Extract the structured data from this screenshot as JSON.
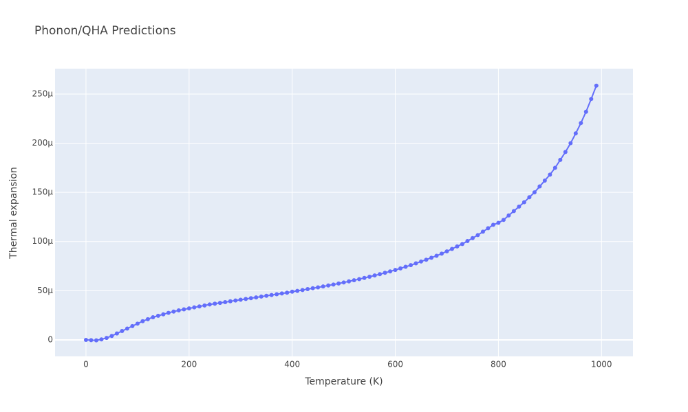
{
  "chart_data": {
    "type": "line",
    "title": "Phonon/QHA Predictions",
    "x_label": "Temperature (K)",
    "y_label": "Thermal expansion",
    "xlim": [
      -60,
      1061
    ],
    "xticks": [
      0,
      200,
      400,
      600,
      800,
      1000
    ],
    "ylim": [
      -1.68e-05,
      0.0002758
    ],
    "yticks": [
      0,
      {
        "value": 5e-05,
        "label": "50µ"
      },
      {
        "value": 0.0001,
        "label": "100µ"
      },
      {
        "value": 0.00015,
        "label": "150µ"
      },
      {
        "value": 0.0002,
        "label": "200µ"
      },
      {
        "value": 0.00025,
        "label": "250µ"
      }
    ],
    "grid": true,
    "x": [
      0,
      10,
      20,
      30,
      40,
      50,
      60,
      70,
      80,
      90,
      100,
      110,
      120,
      130,
      140,
      150,
      160,
      170,
      180,
      190,
      200,
      210,
      220,
      230,
      240,
      250,
      260,
      270,
      280,
      290,
      300,
      310,
      320,
      330,
      340,
      350,
      360,
      370,
      380,
      390,
      400,
      410,
      420,
      430,
      440,
      450,
      460,
      470,
      480,
      490,
      500,
      510,
      520,
      530,
      540,
      550,
      560,
      570,
      580,
      590,
      600,
      610,
      620,
      630,
      640,
      650,
      660,
      670,
      680,
      690,
      700,
      710,
      720,
      730,
      740,
      750,
      760,
      770,
      780,
      790,
      800,
      810,
      820,
      830,
      840,
      850,
      860,
      870,
      880,
      890,
      900,
      910,
      920,
      930,
      940,
      950,
      960,
      970,
      980,
      990
    ],
    "series": [
      {
        "color": "#636efa",
        "values": [
          0.0,
          -3e-07,
          -5e-07,
          5e-07,
          2e-06,
          4e-06,
          6.5e-06,
          9e-06,
          1.15e-05,
          1.4e-05,
          1.65e-05,
          1.9e-05,
          2.1e-05,
          2.3e-05,
          2.45e-05,
          2.6e-05,
          2.75e-05,
          2.88e-05,
          3e-05,
          3.1e-05,
          3.2e-05,
          3.3e-05,
          3.4e-05,
          3.5e-05,
          3.6e-05,
          3.68e-05,
          3.76e-05,
          3.84e-05,
          3.92e-05,
          4e-05,
          4.08e-05,
          4.16e-05,
          4.24e-05,
          4.32e-05,
          4.4e-05,
          4.48e-05,
          4.56e-05,
          4.64e-05,
          4.72e-05,
          4.8e-05,
          4.9e-05,
          4.98e-05,
          5.07e-05,
          5.16e-05,
          5.25e-05,
          5.34e-05,
          5.43e-05,
          5.53e-05,
          5.63e-05,
          5.73e-05,
          5.84e-05,
          5.95e-05,
          6.06e-05,
          6.18e-05,
          6.3e-05,
          6.42e-05,
          6.55e-05,
          6.68e-05,
          6.82e-05,
          6.96e-05,
          7.11e-05,
          7.27e-05,
          7.43e-05,
          7.6e-05,
          7.78e-05,
          7.97e-05,
          8.15e-05,
          8.35e-05,
          8.55e-05,
          8.77e-05,
          9e-05,
          9.25e-05,
          9.5e-05,
          9.75e-05,
          0.0001005,
          0.0001035,
          0.0001065,
          0.00011,
          0.0001135,
          0.000117,
          0.000119,
          0.000122,
          0.0001265,
          0.000131,
          0.0001355,
          0.00014,
          0.000145,
          0.00015,
          0.000156,
          0.000162,
          0.000168,
          0.000175,
          0.000183,
          0.000191,
          0.0002,
          0.00021,
          0.0002205,
          0.000232,
          0.000245,
          0.0002585
        ]
      }
    ]
  }
}
